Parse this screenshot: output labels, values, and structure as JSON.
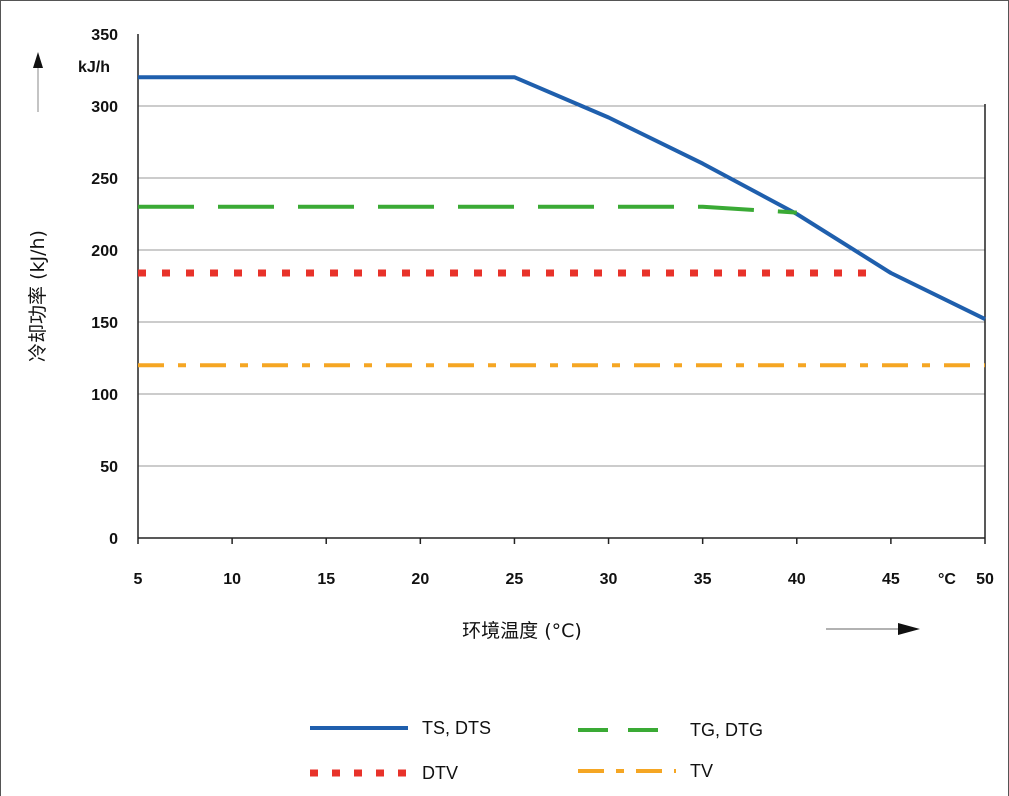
{
  "chart_data": {
    "type": "line",
    "xlabel": "环境温度 (°C)",
    "ylabel": "冷却功率 (kJ/h)",
    "x_unit_label": "°C",
    "y_unit_label": "kJ/h",
    "xlim": [
      5,
      50
    ],
    "ylim": [
      0,
      350
    ],
    "x_ticks": [
      5,
      10,
      15,
      20,
      25,
      30,
      35,
      40,
      45,
      50
    ],
    "y_ticks": [
      0,
      50,
      100,
      150,
      200,
      250,
      300,
      350
    ],
    "grid": "horizontal",
    "legend_position": "bottom",
    "series": [
      {
        "name": "TS, DTS",
        "color": "#1f5fad",
        "style": "solid",
        "points": [
          [
            5,
            320
          ],
          [
            25,
            320
          ],
          [
            30,
            292
          ],
          [
            35,
            260
          ],
          [
            40,
            225
          ],
          [
            45,
            184
          ],
          [
            50,
            152
          ]
        ]
      },
      {
        "name": "TG, DTG",
        "color": "#3aaa35",
        "style": "dashed",
        "points": [
          [
            5,
            230
          ],
          [
            35,
            230
          ],
          [
            40,
            226
          ]
        ]
      },
      {
        "name": "DTV",
        "color": "#e8322a",
        "style": "dotted",
        "points": [
          [
            5,
            184
          ],
          [
            44,
            184
          ]
        ]
      },
      {
        "name": "TV",
        "color": "#f5a623",
        "style": "dashdot",
        "points": [
          [
            5,
            120
          ],
          [
            50,
            120
          ]
        ]
      }
    ]
  }
}
